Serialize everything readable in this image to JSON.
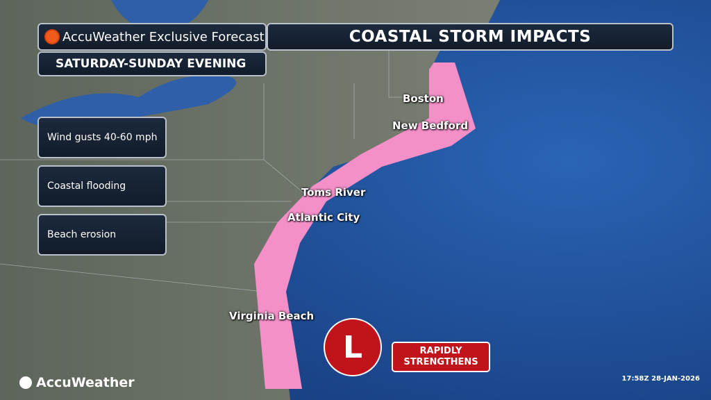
{
  "header": {
    "brand_label": "AccuWeather Exclusive Forecast",
    "title": "COASTAL STORM IMPACTS",
    "subtitle": "SATURDAY-SUNDAY EVENING"
  },
  "impacts": [
    "Wind gusts 40-60 mph",
    "Coastal flooding",
    "Beach erosion"
  ],
  "cities": [
    "Boston",
    "New Bedford",
    "Toms River",
    "Atlantic City",
    "Virginia Beach"
  ],
  "low": {
    "symbol": "L",
    "label_line1": "RAPIDLY",
    "label_line2": "STRENGTHENS"
  },
  "footer": {
    "logo": "AccuWeather",
    "timestamp": "17:58Z 28-JAN-2026"
  },
  "colors": {
    "impact_area": "#f48fc8",
    "low": "#c0141a",
    "ocean": "#1d4a8f",
    "land": "#6b7266",
    "sun": "#f05a1a"
  }
}
